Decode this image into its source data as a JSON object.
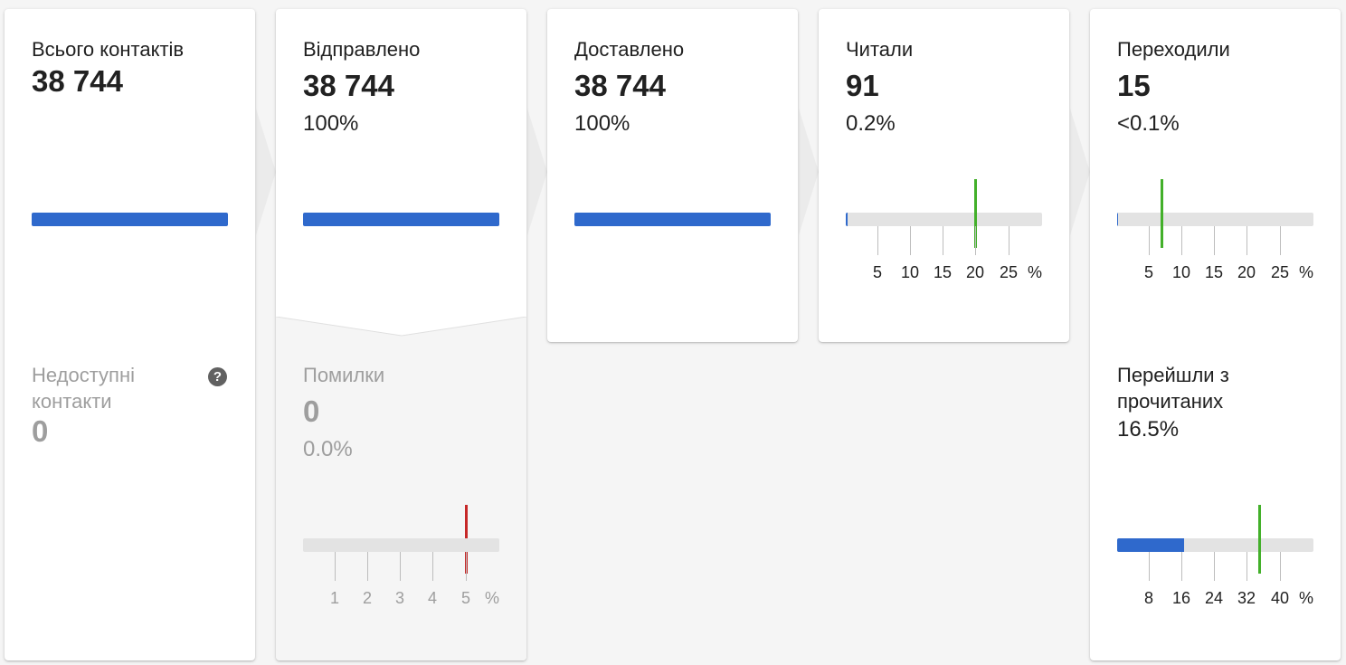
{
  "cards": [
    {
      "label": "Всього контактів",
      "value": "38 744",
      "bar_fraction": 1.0,
      "lower": {
        "label_line1": "Недоступні",
        "label_line2": "контакти",
        "value": "0",
        "help_icon": "question-circle-icon"
      }
    },
    {
      "label": "Відправлено",
      "value": "38 744",
      "percent": "100%",
      "bar_fraction": 1.0,
      "lower": {
        "label": "Помилки",
        "value": "0",
        "percent": "0.0%",
        "gauge": {
          "ticks": [
            "1",
            "2",
            "3",
            "4",
            "5"
          ],
          "unit": "%",
          "fill_fraction": 0.0,
          "benchmark": 5,
          "benchmark_color": "#c62828"
        }
      }
    },
    {
      "label": "Доставлено",
      "value": "38 744",
      "percent": "100%",
      "bar_fraction": 1.0
    },
    {
      "label": "Читали",
      "value": "91",
      "percent": "0.2%",
      "gauge": {
        "ticks": [
          "5",
          "10",
          "15",
          "20",
          "25"
        ],
        "unit": "%",
        "fill_percent": 0.2,
        "benchmark": 20,
        "benchmark_color": "#43b02a"
      }
    },
    {
      "label": "Переходили",
      "value": "15",
      "percent": "<0.1%",
      "gauge": {
        "ticks": [
          "5",
          "10",
          "15",
          "20",
          "25"
        ],
        "unit": "%",
        "fill_percent": 0.04,
        "benchmark": 7,
        "benchmark_color": "#43b02a"
      },
      "lower": {
        "label_line1": "Перейшли з",
        "label_line2": "прочитаних",
        "percent": "16.5%",
        "gauge": {
          "ticks": [
            "8",
            "16",
            "24",
            "32",
            "40"
          ],
          "unit": "%",
          "fill_percent": 16.5,
          "benchmark": 35,
          "benchmark_color": "#43b02a"
        }
      }
    }
  ],
  "colors": {
    "bar": "#2f69cc",
    "track": "#e3e3e3",
    "muted_text": "#9e9e9e",
    "error_marker": "#c62828",
    "benchmark_marker": "#43b02a"
  }
}
